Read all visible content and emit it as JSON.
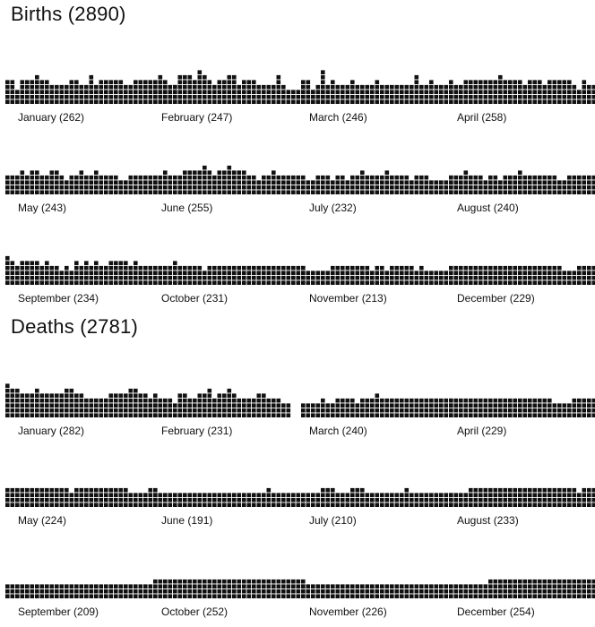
{
  "sections": [
    {
      "title": "Births",
      "total": "(2890)"
    },
    {
      "title": "Deaths",
      "total": "(2781)"
    }
  ],
  "chart_data": [
    {
      "type": "bar",
      "title": "Births (2890)",
      "unit": "each square = one record; columns = days of the month",
      "series": [
        {
          "name": "January (262)",
          "values": [
            5,
            5,
            3,
            5,
            5,
            5,
            6,
            5,
            5,
            4,
            4,
            4,
            4,
            5,
            5,
            4,
            4,
            6,
            4,
            5,
            5,
            5,
            5,
            5,
            4,
            4,
            5,
            5,
            5,
            5,
            5,
            5,
            4,
            3,
            4
          ]
        },
        {
          "name": "February (247)",
          "values": [
            4,
            6,
            5,
            4,
            4,
            6,
            6,
            6,
            5,
            7,
            6,
            5,
            4,
            5,
            5,
            6,
            6,
            4,
            5,
            5,
            5,
            4,
            4,
            4,
            4,
            6,
            4,
            3,
            3,
            3,
            5,
            5,
            3,
            3,
            3
          ]
        },
        {
          "name": "March (246)",
          "values": [
            4,
            3,
            3,
            4,
            7,
            4,
            5,
            4,
            4,
            4,
            5,
            4,
            4,
            4,
            4,
            5,
            4,
            4,
            4,
            4,
            4,
            4,
            4,
            6,
            4,
            4,
            5,
            4,
            4,
            4,
            4,
            3
          ]
        },
        {
          "name": "April (258)",
          "values": [
            5,
            4,
            4,
            5,
            5,
            5,
            5,
            5,
            5,
            5,
            6,
            5,
            5,
            5,
            5,
            4,
            5,
            5,
            5,
            4,
            5,
            5,
            5,
            5,
            5,
            4,
            3,
            5,
            4,
            4
          ]
        },
        {
          "name": "May (243)",
          "values": [
            4,
            4,
            4,
            5,
            4,
            5,
            5,
            4,
            4,
            5,
            5,
            4,
            3,
            4,
            4,
            5,
            4,
            4,
            5,
            4,
            4,
            4,
            4,
            3,
            3,
            4,
            4,
            4,
            4,
            4,
            3
          ]
        },
        {
          "name": "June (255)",
          "values": [
            4,
            4,
            5,
            4,
            4,
            4,
            5,
            5,
            5,
            5,
            6,
            5,
            4,
            5,
            5,
            6,
            5,
            5,
            5,
            4,
            4,
            3,
            4,
            4,
            5,
            4,
            4,
            4,
            4,
            4
          ]
        },
        {
          "name": "July (232)",
          "values": [
            4,
            3,
            3,
            4,
            4,
            4,
            3,
            4,
            4,
            3,
            4,
            4,
            5,
            4,
            4,
            4,
            4,
            5,
            4,
            4,
            4,
            4,
            3,
            4,
            4,
            4,
            3,
            3,
            3,
            3,
            4
          ]
        },
        {
          "name": "August (240)",
          "values": [
            4,
            4,
            4,
            5,
            4,
            4,
            4,
            3,
            4,
            4,
            3,
            4,
            4,
            4,
            5,
            4,
            4,
            4,
            4,
            4,
            4,
            4,
            3,
            3,
            4,
            4,
            4,
            4,
            4,
            4,
            4
          ]
        },
        {
          "name": "September (234)",
          "values": [
            6,
            5,
            4,
            5,
            5,
            5,
            5,
            4,
            5,
            4,
            4,
            3,
            4,
            3,
            5,
            4,
            5,
            4,
            5,
            4,
            4,
            5,
            5,
            5,
            5,
            4,
            5,
            4,
            4,
            4
          ]
        },
        {
          "name": "October (231)",
          "values": [
            4,
            4,
            4,
            4,
            5,
            4,
            4,
            4,
            4,
            4,
            3,
            4,
            4,
            4,
            4,
            4,
            4,
            4,
            4,
            4,
            4,
            4,
            4,
            4,
            4,
            4,
            4,
            4,
            4,
            4,
            4
          ]
        },
        {
          "name": "November (213)",
          "values": [
            4,
            3,
            3,
            3,
            3,
            3,
            4,
            4,
            4,
            4,
            4,
            4,
            4,
            4,
            3,
            4,
            4,
            3,
            4,
            4,
            4,
            4,
            4,
            3,
            4,
            3,
            3,
            3,
            3,
            3
          ]
        },
        {
          "name": "December (229)",
          "values": [
            4,
            4,
            4,
            4,
            4,
            4,
            4,
            4,
            4,
            4,
            4,
            4,
            4,
            4,
            4,
            4,
            4,
            4,
            4,
            4,
            4,
            4,
            4,
            3,
            3,
            3,
            4,
            4,
            4,
            4,
            4
          ]
        }
      ]
    },
    {
      "type": "bar",
      "title": "Deaths (2781)",
      "unit": "each square = one record; columns = days of the month",
      "series": [
        {
          "name": "January (282)",
          "values": [
            7,
            6,
            6,
            5,
            5,
            5,
            6,
            5,
            5,
            5,
            5,
            5,
            6,
            6,
            5,
            5,
            4,
            4,
            4,
            4,
            4,
            5,
            5,
            5,
            5,
            6,
            6,
            5,
            5,
            4,
            5
          ]
        },
        {
          "name": "February (231)",
          "values": [
            4,
            4,
            4,
            4,
            3,
            5,
            5,
            4,
            4,
            5,
            5,
            6,
            4,
            5,
            5,
            6,
            5,
            4,
            4,
            4,
            4,
            5,
            5,
            4,
            4,
            4,
            3,
            3
          ]
        },
        {
          "name": "March (240)",
          "values": [
            3,
            3,
            3,
            3,
            4,
            3,
            3,
            4,
            4,
            4,
            4,
            3,
            4,
            4,
            4,
            5,
            4,
            4,
            4,
            4,
            4,
            4,
            4,
            4,
            4,
            4,
            4,
            4,
            4,
            4,
            4
          ]
        },
        {
          "name": "April (229)",
          "values": [
            4,
            4,
            4,
            4,
            4,
            4,
            4,
            4,
            4,
            4,
            4,
            4,
            4,
            4,
            4,
            4,
            4,
            4,
            4,
            4,
            4,
            3,
            3,
            3,
            3,
            4,
            4,
            4,
            4,
            4
          ]
        },
        {
          "name": "May (224)",
          "values": [
            4,
            4,
            4,
            4,
            4,
            4,
            4,
            4,
            4,
            4,
            4,
            4,
            4,
            3,
            4,
            4,
            4,
            4,
            4,
            4,
            4,
            4,
            4,
            4,
            4,
            3,
            3,
            3,
            3,
            4,
            4
          ]
        },
        {
          "name": "June (191)",
          "values": [
            3,
            3,
            3,
            3,
            3,
            3,
            3,
            3,
            3,
            3,
            3,
            3,
            3,
            3,
            3,
            3,
            3,
            3,
            3,
            3,
            3,
            3,
            3,
            4,
            3,
            3,
            3,
            3,
            3,
            3
          ]
        },
        {
          "name": "July (210)",
          "values": [
            3,
            3,
            3,
            3,
            4,
            4,
            4,
            3,
            3,
            3,
            4,
            4,
            4,
            3,
            3,
            3,
            3,
            3,
            3,
            3,
            3,
            4,
            3,
            3,
            3,
            3,
            3,
            3,
            3,
            3,
            3
          ]
        },
        {
          "name": "August (233)",
          "values": [
            3,
            3,
            3,
            3,
            4,
            4,
            4,
            4,
            4,
            4,
            4,
            4,
            4,
            4,
            4,
            4,
            4,
            4,
            4,
            4,
            4,
            4,
            4,
            4,
            4,
            4,
            3,
            4,
            4,
            4,
            4
          ]
        },
        {
          "name": "September (209)",
          "values": [
            3,
            3,
            3,
            3,
            3,
            3,
            3,
            3,
            3,
            3,
            3,
            3,
            3,
            3,
            3,
            3,
            3,
            3,
            3,
            3,
            3,
            3,
            3,
            3,
            3,
            3,
            3,
            3,
            3,
            3
          ]
        },
        {
          "name": "October (252)",
          "values": [
            4,
            4,
            4,
            4,
            4,
            4,
            4,
            4,
            4,
            4,
            4,
            4,
            4,
            4,
            4,
            4,
            4,
            4,
            4,
            4,
            4,
            4,
            4,
            4,
            4,
            4,
            4,
            4,
            4,
            4,
            4
          ]
        },
        {
          "name": "November (226)",
          "values": [
            3,
            3,
            3,
            3,
            3,
            3,
            3,
            3,
            3,
            3,
            3,
            3,
            3,
            3,
            3,
            3,
            3,
            3,
            3,
            3,
            3,
            3,
            3,
            3,
            3,
            3,
            3,
            3,
            3,
            3
          ]
        },
        {
          "name": "December (254)",
          "values": [
            3,
            3,
            3,
            3,
            3,
            3,
            3,
            3,
            4,
            4,
            4,
            4,
            4,
            4,
            4,
            4,
            4,
            4,
            4,
            4,
            4,
            4,
            4,
            4,
            4,
            4,
            4,
            4,
            4,
            4,
            4
          ]
        }
      ]
    }
  ],
  "colors": {
    "squares": "#111111",
    "background": "#ffffff"
  }
}
